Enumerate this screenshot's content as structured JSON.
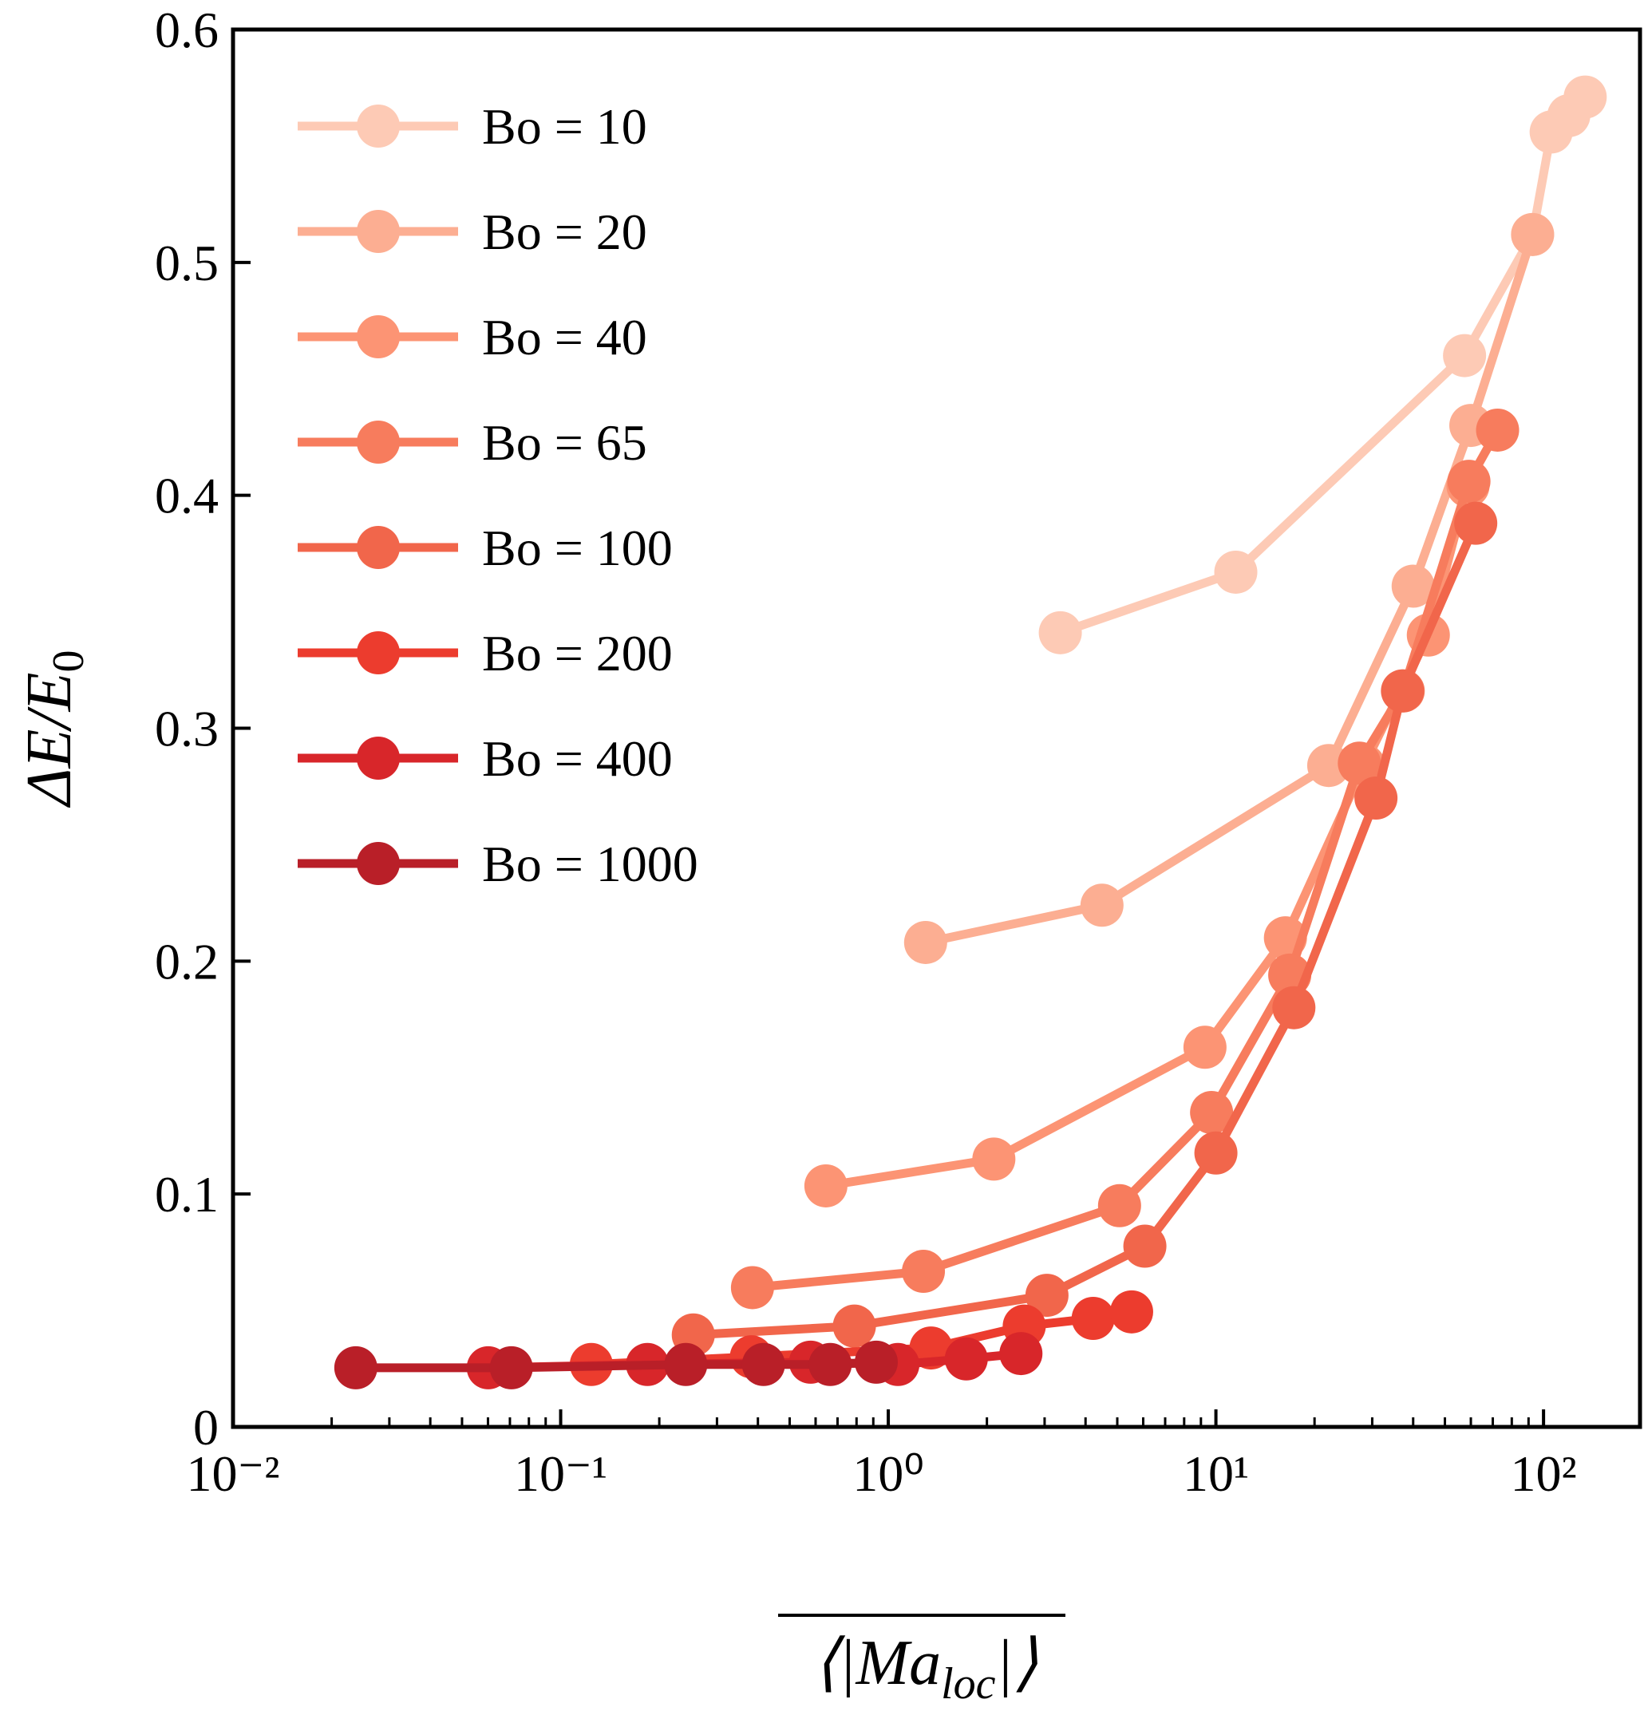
{
  "chart_data": {
    "type": "line",
    "xlabel": [
      "⟨|Ma",
      "loc",
      "|⟩"
    ],
    "ylabel": [
      "ΔE/E",
      "0"
    ],
    "xscale": "log",
    "xlim": [
      0.01,
      197
    ],
    "ylim": [
      0,
      0.6
    ],
    "xticks": [
      {
        "value": 0.01,
        "label": "10⁻²"
      },
      {
        "value": 0.1,
        "label": "10⁻¹"
      },
      {
        "value": 1,
        "label": "10⁰"
      },
      {
        "value": 10,
        "label": "10¹"
      },
      {
        "value": 100,
        "label": "10²"
      }
    ],
    "xminorticks": [
      0.02,
      0.03,
      0.04,
      0.05,
      0.06,
      0.07,
      0.08,
      0.09,
      0.2,
      0.3,
      0.4,
      0.5,
      0.6,
      0.7,
      0.8,
      0.9,
      2,
      3,
      4,
      5,
      6,
      7,
      8,
      9,
      20,
      30,
      40,
      50,
      60,
      70,
      80,
      90
    ],
    "yticks": [
      0,
      0.1,
      0.2,
      0.3,
      0.4,
      0.5,
      0.6
    ],
    "legend": "upper left",
    "series": [
      {
        "name": "Bo = 10",
        "color": "#fdcab5",
        "x": [
          3.35,
          11.5,
          57.4,
          92.6,
          105.5,
          119.4,
          134
        ],
        "values": [
          0.341,
          0.367,
          0.46,
          0.512,
          0.556,
          0.563,
          0.571
        ]
      },
      {
        "name": "Bo = 20",
        "color": "#fcae92",
        "x": [
          1.3,
          4.49,
          22.1,
          40,
          60,
          92.6
        ],
        "values": [
          0.208,
          0.224,
          0.284,
          0.361,
          0.43,
          0.512
        ]
      },
      {
        "name": "Bo = 40",
        "color": "#fc9474",
        "x": [
          0.645,
          2.1,
          9.26,
          16.3,
          28.3,
          44.5,
          58.8
        ],
        "values": [
          0.1035,
          0.115,
          0.163,
          0.21,
          0.284,
          0.34,
          0.404
        ]
      },
      {
        "name": "Bo = 65",
        "color": "#f77c5d",
        "x": [
          0.385,
          1.28,
          5.08,
          9.7,
          16.8,
          27.4,
          37.3,
          59.2,
          72.4
        ],
        "values": [
          0.0598,
          0.0668,
          0.095,
          0.135,
          0.194,
          0.285,
          0.316,
          0.406,
          0.428
        ]
      },
      {
        "name": "Bo = 100",
        "color": "#f1664b",
        "x": [
          0.254,
          0.788,
          3.05,
          6.07,
          10,
          17.3,
          30.8,
          37.1,
          62.1
        ],
        "values": [
          0.0395,
          0.0433,
          0.0565,
          0.0776,
          0.1176,
          0.18,
          0.27,
          0.316,
          0.388
        ]
      },
      {
        "name": "Bo = 200",
        "color": "#ec3c2e",
        "x": [
          0.124,
          0.382,
          1.35,
          2.6,
          4.22,
          5.53
        ],
        "values": [
          0.0268,
          0.0301,
          0.0339,
          0.0433,
          0.0466,
          0.0494
        ]
      },
      {
        "name": "Bo = 400",
        "color": "#d8262a",
        "x": [
          0.0601,
          0.184,
          0.579,
          1.07,
          1.73,
          2.54
        ],
        "values": [
          0.0254,
          0.0268,
          0.0278,
          0.0268,
          0.0292,
          0.0315
        ]
      },
      {
        "name": "Bo = 1000",
        "color": "#b91f28",
        "x": [
          0.0237,
          0.0707,
          0.241,
          0.416,
          0.665,
          0.919
        ],
        "values": [
          0.0254,
          0.0254,
          0.0268,
          0.0268,
          0.0268,
          0.0278
        ]
      }
    ]
  }
}
